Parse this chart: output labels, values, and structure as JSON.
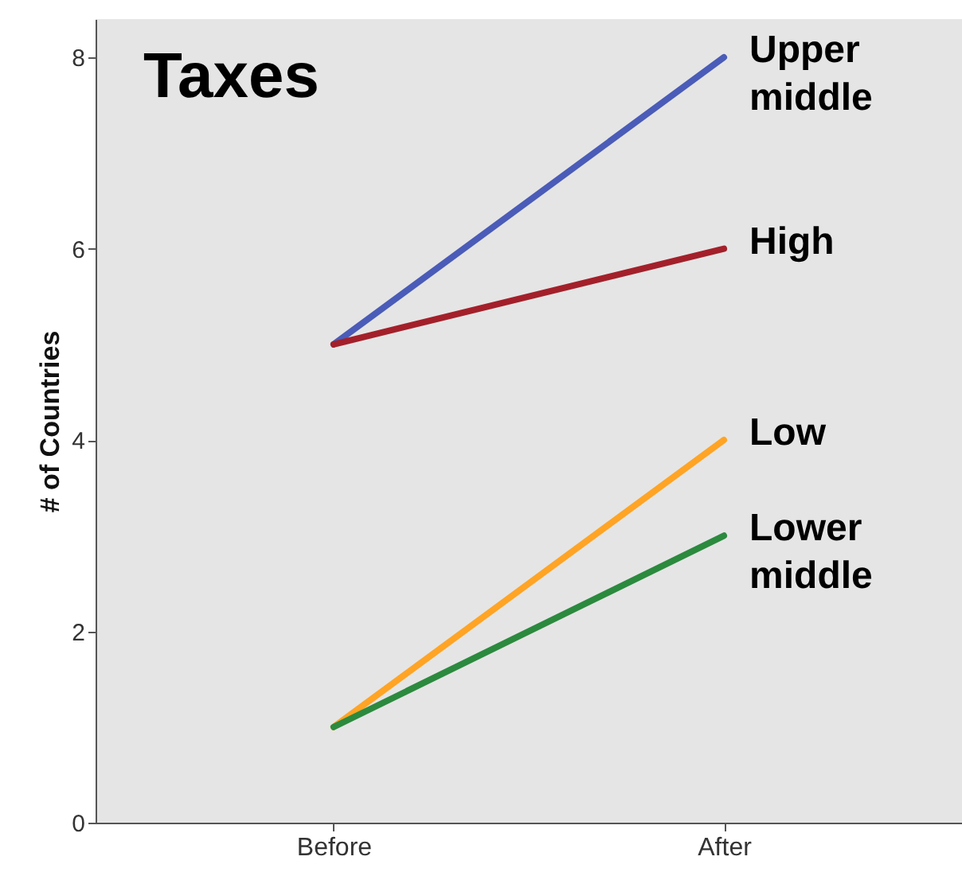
{
  "chart_data": {
    "type": "line",
    "title": "Taxes",
    "ylabel": "# of Countries",
    "categories": [
      "Before",
      "After"
    ],
    "ylim": [
      0,
      8.4
    ],
    "yticks": [
      0,
      2,
      4,
      6,
      8
    ],
    "series": [
      {
        "name": "Upper middle",
        "color": "#4a5cb8",
        "values": [
          5,
          8
        ]
      },
      {
        "name": "High",
        "color": "#a3202a",
        "values": [
          5,
          6
        ]
      },
      {
        "name": "Low",
        "color": "#ffa424",
        "values": [
          1,
          4
        ]
      },
      {
        "name": "Lower middle",
        "color": "#2b8a3e",
        "values": [
          1,
          3
        ]
      }
    ]
  }
}
